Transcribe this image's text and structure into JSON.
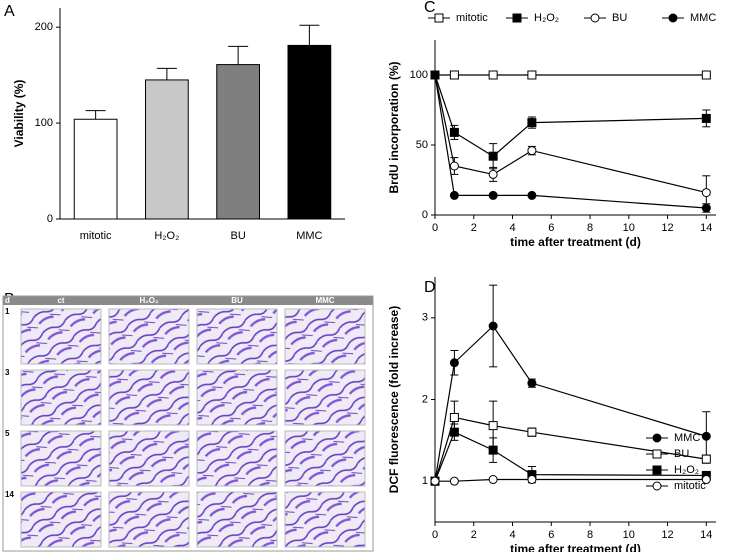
{
  "chart_data": [
    {
      "type": "bar",
      "panel_label": "A",
      "ylabel": "Viability (%)",
      "categories": [
        "mitotic",
        "H₂O₂",
        "BU",
        "MMC"
      ],
      "values": [
        104,
        145,
        161,
        181
      ],
      "errors": [
        9,
        12,
        19,
        21
      ],
      "colors": [
        "#ffffff",
        "#c8c8c8",
        "#7f7f7f",
        "#000000"
      ],
      "ylim": [
        0,
        220
      ],
      "yticks": [
        0,
        100,
        200
      ]
    },
    {
      "type": "line",
      "panel_label": "C",
      "ylabel": "BrdU incorporation (%)",
      "xlabel": "time after treatment (d)",
      "x": [
        0,
        1,
        3,
        5,
        14
      ],
      "xlim": [
        0,
        14.5
      ],
      "xticks": [
        0,
        2,
        4,
        6,
        8,
        10,
        12,
        14
      ],
      "ylim": [
        0,
        125
      ],
      "yticks": [
        0,
        50,
        100
      ],
      "legend": "top",
      "series": [
        {
          "name": "mitotic",
          "color": "#000000",
          "marker": "square",
          "marker_fill": "#ffffff",
          "values": [
            100,
            100,
            100,
            100,
            100
          ],
          "errors": [
            0,
            0,
            0,
            0,
            0
          ]
        },
        {
          "name": "H₂O₂",
          "color": "#000000",
          "marker": "square",
          "marker_fill": "#000000",
          "values": [
            100,
            59,
            42,
            66,
            69
          ],
          "errors": [
            0,
            5,
            9,
            4,
            6
          ]
        },
        {
          "name": "BU",
          "color": "#000000",
          "marker": "circle",
          "marker_fill": "#ffffff",
          "values": [
            100,
            35,
            29,
            46,
            16
          ],
          "errors": [
            0,
            6,
            5,
            3,
            12
          ]
        },
        {
          "name": "MMC",
          "color": "#000000",
          "marker": "circle",
          "marker_fill": "#000000",
          "values": [
            100,
            14,
            14,
            14,
            5
          ],
          "errors": [
            0,
            1,
            1,
            1,
            3
          ]
        }
      ]
    },
    {
      "type": "line",
      "panel_label": "D",
      "ylabel": "DCF fluorescence (fold increase)",
      "xlabel": "time after treatment (d)",
      "x": [
        0,
        1,
        3,
        5,
        14
      ],
      "xlim": [
        0,
        14.5
      ],
      "xticks": [
        0,
        2,
        4,
        6,
        8,
        10,
        12,
        14
      ],
      "ylim": [
        0.5,
        3.5
      ],
      "yticks": [
        1,
        2,
        3
      ],
      "legend": "right",
      "series": [
        {
          "name": "MMC",
          "color": "#000000",
          "marker": "circle",
          "marker_fill": "#000000",
          "values": [
            1,
            2.45,
            2.9,
            2.2,
            1.55
          ],
          "errors": [
            0,
            0.15,
            0.5,
            0.05,
            0.3
          ]
        },
        {
          "name": "BU",
          "color": "#000000",
          "marker": "square",
          "marker_fill": "#ffffff",
          "values": [
            1,
            1.78,
            1.68,
            1.6,
            1.27
          ],
          "errors": [
            0,
            0.2,
            0.3,
            0.05,
            0.05
          ]
        },
        {
          "name": "H₂O₂",
          "color": "#000000",
          "marker": "square",
          "marker_fill": "#000000",
          "values": [
            1,
            1.6,
            1.38,
            1.08,
            1.07
          ],
          "errors": [
            0,
            0.1,
            0.15,
            0.1,
            0.03
          ]
        },
        {
          "name": "mitotic",
          "color": "#000000",
          "marker": "circle",
          "marker_fill": "#ffffff",
          "values": [
            1,
            1,
            1.02,
            1.02,
            1.02
          ],
          "errors": [
            0,
            0,
            0,
            0,
            0
          ]
        }
      ]
    }
  ],
  "micrograph_grid": {
    "panel_label": "B",
    "corner": "d",
    "columns": [
      "ct",
      "H₂O₂",
      "BU",
      "MMC"
    ],
    "rows": [
      "1",
      "3",
      "5",
      "14"
    ]
  }
}
